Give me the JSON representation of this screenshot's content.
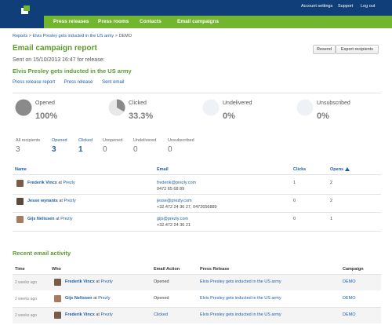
{
  "header": {
    "logo_icon": "prezly-logo-icon",
    "nav": [
      "Press releases",
      "Press rooms",
      "Contacts",
      "Email campaigns"
    ],
    "top_links": [
      "Account settings",
      "Support",
      "Log out"
    ]
  },
  "breadcrumb": {
    "root": "Reports",
    "sep": ">",
    "parent": "Elvis Presley gets inducted in the US army",
    "current": "DEMO"
  },
  "page": {
    "title": "Email campaign report",
    "sent_text": "Sent on 15/10/2013 16:47 for release:",
    "release_title": "Elvis Presley gets inducted in the US army",
    "links": [
      "Press release report",
      "Press release",
      "Sent email"
    ],
    "buttons": {
      "resend": "Resend",
      "export": "Export recipients"
    }
  },
  "stats": [
    {
      "label": "Opened",
      "value": "100%",
      "fraction": 1.0
    },
    {
      "label": "Clicked",
      "value": "33.3%",
      "fraction": 0.333
    },
    {
      "label": "Undelivered",
      "value": "0%",
      "fraction": 0
    },
    {
      "label": "Unsubscribed",
      "value": "0%",
      "fraction": 0
    }
  ],
  "filters": [
    {
      "label": "All recipients",
      "value": "3"
    },
    {
      "label": "Opened",
      "value": "3"
    },
    {
      "label": "Clicked",
      "value": "1"
    },
    {
      "label": "Unopened",
      "value": "0"
    },
    {
      "label": "Undelivered",
      "value": "0"
    },
    {
      "label": "Unsubscribed",
      "value": "0"
    }
  ],
  "recipients": {
    "columns": {
      "name": "Name",
      "email": "Email",
      "clicks": "Clicks",
      "opens": "Opens"
    },
    "sort_icon": "sort-up-icon",
    "at": "at",
    "rows": [
      {
        "name": "Frederik Vincx",
        "org": "Prezly",
        "email": "frederik@prezly.com",
        "phone": "0472 65 68 89",
        "clicks": "1",
        "opens": "2"
      },
      {
        "name": "Jesse wynants",
        "org": "Prezly",
        "email": "jesse@prezly.com",
        "phone": "+32.472 24 36 27, 0472656889",
        "clicks": "0",
        "opens": "2"
      },
      {
        "name": "Gijs Nelissen",
        "org": "Prezly",
        "email": "gijs@prezly.com",
        "phone": "+32.472 24 36 21",
        "clicks": "0",
        "opens": "1"
      }
    ]
  },
  "activity": {
    "title": "Recent email activity",
    "columns": {
      "time": "Time",
      "who": "Who",
      "action": "Email Action",
      "release": "Press Release",
      "campaign": "Campaign"
    },
    "rows": [
      {
        "time": "2 weeks ago",
        "name": "Frederik Vincx",
        "org": "Prezly",
        "action": "Opened",
        "release": "Elvis Presley gets inducted in the US army",
        "campaign": "DEMO"
      },
      {
        "time": "2 weeks ago",
        "name": "Gijs Nelissen",
        "org": "Prezly",
        "action": "Opened",
        "release": "Elvis Presley gets inducted in the US army",
        "campaign": "DEMO"
      },
      {
        "time": "2 weeks ago",
        "name": "Frederik Vincx",
        "org": "Prezly",
        "action": "Clicked",
        "release": "Elvis Presley gets inducted in the US army",
        "campaign": "DEMO"
      }
    ]
  },
  "colors": {
    "header_bg": "#0f3e78",
    "nav_bg": "#72b62f",
    "title_green": "#5b9a2c",
    "link_blue": "#1f5fa8"
  }
}
